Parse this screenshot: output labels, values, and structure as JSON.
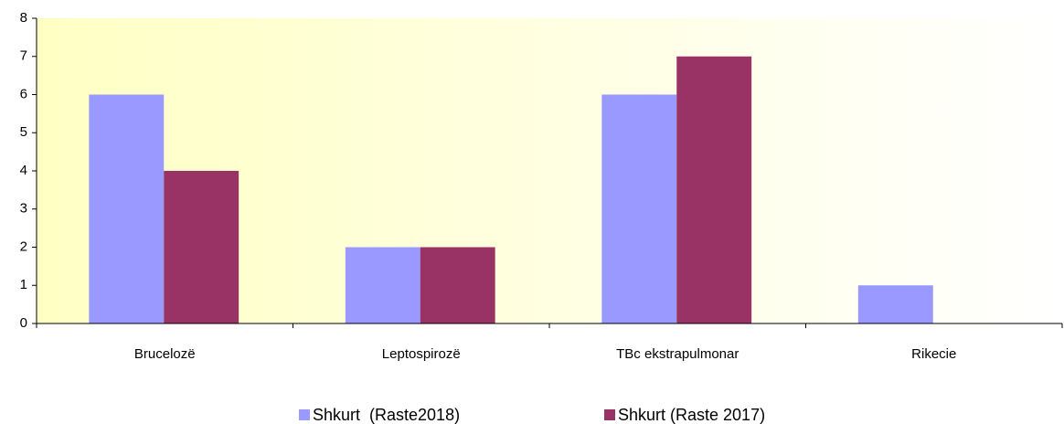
{
  "chart_data": {
    "type": "bar",
    "categories": [
      "Brucelozë",
      "Leptospirozë",
      "TBc ekstrapulmonar",
      "Rikecie"
    ],
    "series": [
      {
        "name": "Shkurt  (Raste2018)",
        "color": "#9999ff",
        "values": [
          6,
          2,
          6,
          1
        ]
      },
      {
        "name": "Shkurt (Raste 2017)",
        "color": "#993366",
        "values": [
          4,
          2,
          7,
          0
        ]
      }
    ],
    "ylim": [
      0,
      8
    ],
    "yticks": [
      0,
      1,
      2,
      3,
      4,
      5,
      6,
      7,
      8
    ],
    "legend": "bottom"
  }
}
